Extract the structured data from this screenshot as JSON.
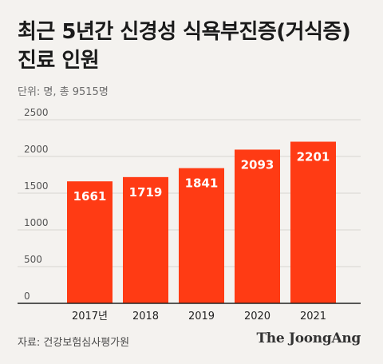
{
  "header": {
    "title": "최근 5년간 신경성 식욕부진증(거식증) 진료 인원",
    "unit_note": "단위: 명, 총 9515명"
  },
  "footer": {
    "source": "자료: 건강보험심사평가원",
    "logo_text": "The JoongAng"
  },
  "colors": {
    "bar": "#ff3b14",
    "grid": "#d9d6d2",
    "axis": "#222222",
    "background": "#f4f2ef"
  },
  "chart_data": {
    "type": "bar",
    "categories": [
      "2017년",
      "2018",
      "2019",
      "2020",
      "2021"
    ],
    "values": [
      1661,
      1719,
      1841,
      2093,
      2201
    ],
    "ylim": [
      0,
      2500
    ],
    "yticks": [
      0,
      500,
      1000,
      1500,
      2000,
      2500
    ],
    "grid": true,
    "data_labels": true
  }
}
